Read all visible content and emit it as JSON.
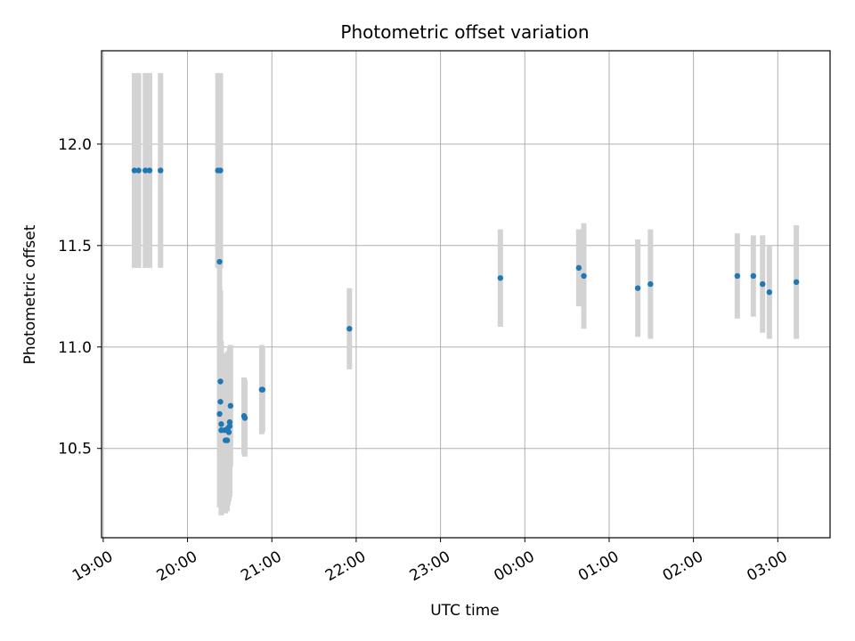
{
  "chart_data": {
    "type": "scatter",
    "title": "Photometric offset variation",
    "xlabel": "UTC time",
    "ylabel": "Photometric offset",
    "x_axis": "time (hours since 19:00 UTC)",
    "xlim": [
      -0.02,
      8.62
    ],
    "ylim": [
      10.06,
      12.46
    ],
    "xticks": [
      {
        "v": 0,
        "label": "19:00"
      },
      {
        "v": 1,
        "label": "20:00"
      },
      {
        "v": 2,
        "label": "21:00"
      },
      {
        "v": 3,
        "label": "22:00"
      },
      {
        "v": 4,
        "label": "23:00"
      },
      {
        "v": 5,
        "label": "00:00"
      },
      {
        "v": 6,
        "label": "01:00"
      },
      {
        "v": 7,
        "label": "02:00"
      },
      {
        "v": 8,
        "label": "03:00"
      }
    ],
    "yticks": [
      {
        "v": 10.5,
        "label": "10.5"
      },
      {
        "v": 11.0,
        "label": "11.0"
      },
      {
        "v": 11.5,
        "label": "11.5"
      },
      {
        "v": 12.0,
        "label": "12.0"
      }
    ],
    "grid": true,
    "point_color": "#1f77b4",
    "errorbar_color": "#d3d3d3",
    "points": [
      {
        "x": 0.37,
        "y": 11.87,
        "err": 0.48
      },
      {
        "x": 0.42,
        "y": 11.87,
        "err": 0.48
      },
      {
        "x": 0.5,
        "y": 11.87,
        "err": 0.48
      },
      {
        "x": 0.55,
        "y": 11.87,
        "err": 0.48
      },
      {
        "x": 0.68,
        "y": 11.87,
        "err": 0.48
      },
      {
        "x": 1.36,
        "y": 11.87,
        "err": 0.48
      },
      {
        "x": 1.39,
        "y": 11.87,
        "err": 0.48
      },
      {
        "x": 1.38,
        "y": 11.42,
        "err": 0.77
      },
      {
        "x": 1.39,
        "y": 10.83,
        "err": 0.45
      },
      {
        "x": 1.39,
        "y": 10.73,
        "err": 0.51
      },
      {
        "x": 1.38,
        "y": 10.67,
        "err": 0.46
      },
      {
        "x": 1.4,
        "y": 10.62,
        "err": 0.41
      },
      {
        "x": 1.4,
        "y": 10.59,
        "err": 0.42
      },
      {
        "x": 1.44,
        "y": 10.59,
        "err": 0.38
      },
      {
        "x": 1.45,
        "y": 10.54,
        "err": 0.36
      },
      {
        "x": 1.47,
        "y": 10.54,
        "err": 0.35
      },
      {
        "x": 1.48,
        "y": 10.6,
        "err": 0.38
      },
      {
        "x": 1.49,
        "y": 10.58,
        "err": 0.34
      },
      {
        "x": 1.5,
        "y": 10.63,
        "err": 0.37
      },
      {
        "x": 1.5,
        "y": 10.61,
        "err": 0.35
      },
      {
        "x": 1.51,
        "y": 10.71,
        "err": 0.3
      },
      {
        "x": 1.67,
        "y": 10.66,
        "err": 0.19
      },
      {
        "x": 1.68,
        "y": 10.65,
        "err": 0.19
      },
      {
        "x": 1.88,
        "y": 10.79,
        "err": 0.22
      },
      {
        "x": 1.89,
        "y": 10.79,
        "err": 0.21
      },
      {
        "x": 2.92,
        "y": 11.09,
        "err": 0.2
      },
      {
        "x": 4.71,
        "y": 11.34,
        "err": 0.24
      },
      {
        "x": 5.64,
        "y": 11.39,
        "err": 0.19
      },
      {
        "x": 5.7,
        "y": 11.35,
        "err": 0.26
      },
      {
        "x": 6.34,
        "y": 11.29,
        "err": 0.24
      },
      {
        "x": 6.49,
        "y": 11.31,
        "err": 0.27
      },
      {
        "x": 7.52,
        "y": 11.35,
        "err": 0.21
      },
      {
        "x": 7.71,
        "y": 11.35,
        "err": 0.2
      },
      {
        "x": 7.82,
        "y": 11.31,
        "err": 0.24
      },
      {
        "x": 7.9,
        "y": 11.27,
        "err": 0.23
      },
      {
        "x": 8.22,
        "y": 11.32,
        "err": 0.28
      }
    ]
  }
}
